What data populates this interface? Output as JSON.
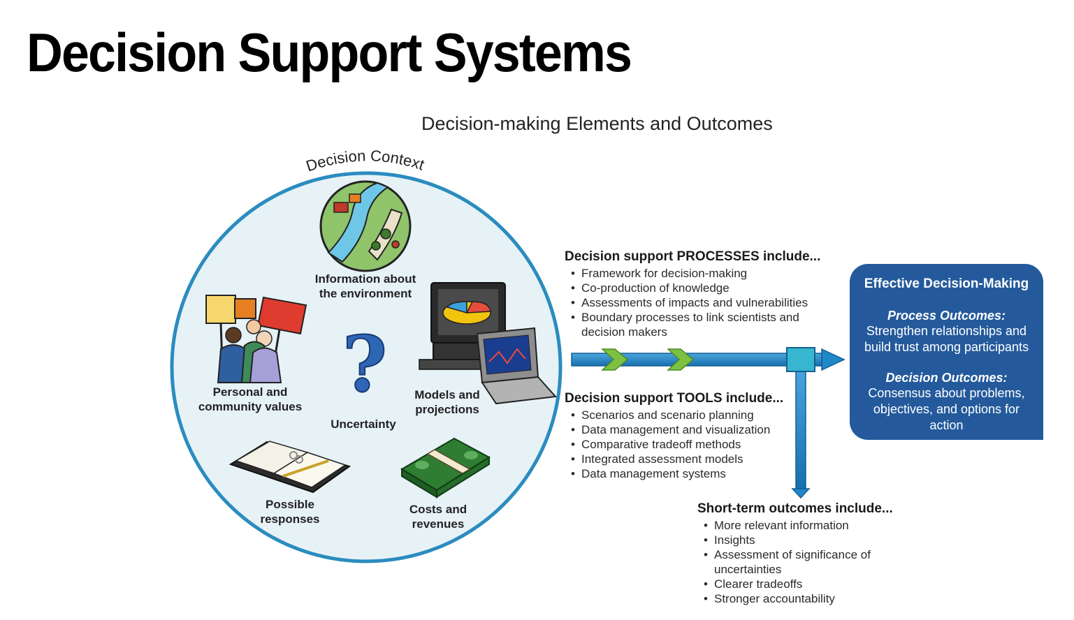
{
  "title": "Decision Support Systems",
  "diagram_title": "Decision-making Elements and Outcomes",
  "circle": {
    "context_label": "Decision Context",
    "items": [
      {
        "label": "Information about\nthe environment",
        "icon": "environment-map-icon"
      },
      {
        "label": "Personal and\ncommunity values",
        "icon": "protest-signs-icon"
      },
      {
        "label": "Uncertainty",
        "icon": "question-mark-icon"
      },
      {
        "label": "Models and\nprojections",
        "icon": "computer-icon"
      },
      {
        "label": "Possible\nresponses",
        "icon": "planner-book-icon"
      },
      {
        "label": "Costs and\nrevenues",
        "icon": "money-stack-icon"
      }
    ]
  },
  "processes": {
    "heading": "Decision support PROCESSES include...",
    "items": [
      "Framework for decision-making",
      "Co-production of knowledge",
      "Assessments of impacts and vulnerabilities",
      "Boundary processes to link scientists and decision makers"
    ]
  },
  "tools": {
    "heading": "Decision support TOOLS include...",
    "items": [
      "Scenarios and scenario planning",
      "Data management and visualization",
      "Comparative tradeoff methods",
      "Integrated assessment models",
      "Data management systems"
    ]
  },
  "short_term": {
    "heading": "Short-term outcomes include...",
    "items": [
      "More relevant information",
      "Insights",
      "Assessment of significance of uncertainties",
      "Clearer tradeoffs",
      "Stronger accountability"
    ]
  },
  "effective": {
    "title": "Effective Decision-Making",
    "process_heading": "Process Outcomes:",
    "process_text": "Strengthen relationships and build trust among participants",
    "decision_heading": "Decision Outcomes:",
    "decision_text": "Consensus about problems, objectives, and options for action"
  },
  "colors": {
    "circle_fill": "#e7f2f7",
    "circle_stroke": "#2b8cbf",
    "arrow_blue": "#1f88c8",
    "chevron_green": "#7cc142",
    "box_blue": "#245a9c",
    "junction_teal": "#36b7cf"
  }
}
